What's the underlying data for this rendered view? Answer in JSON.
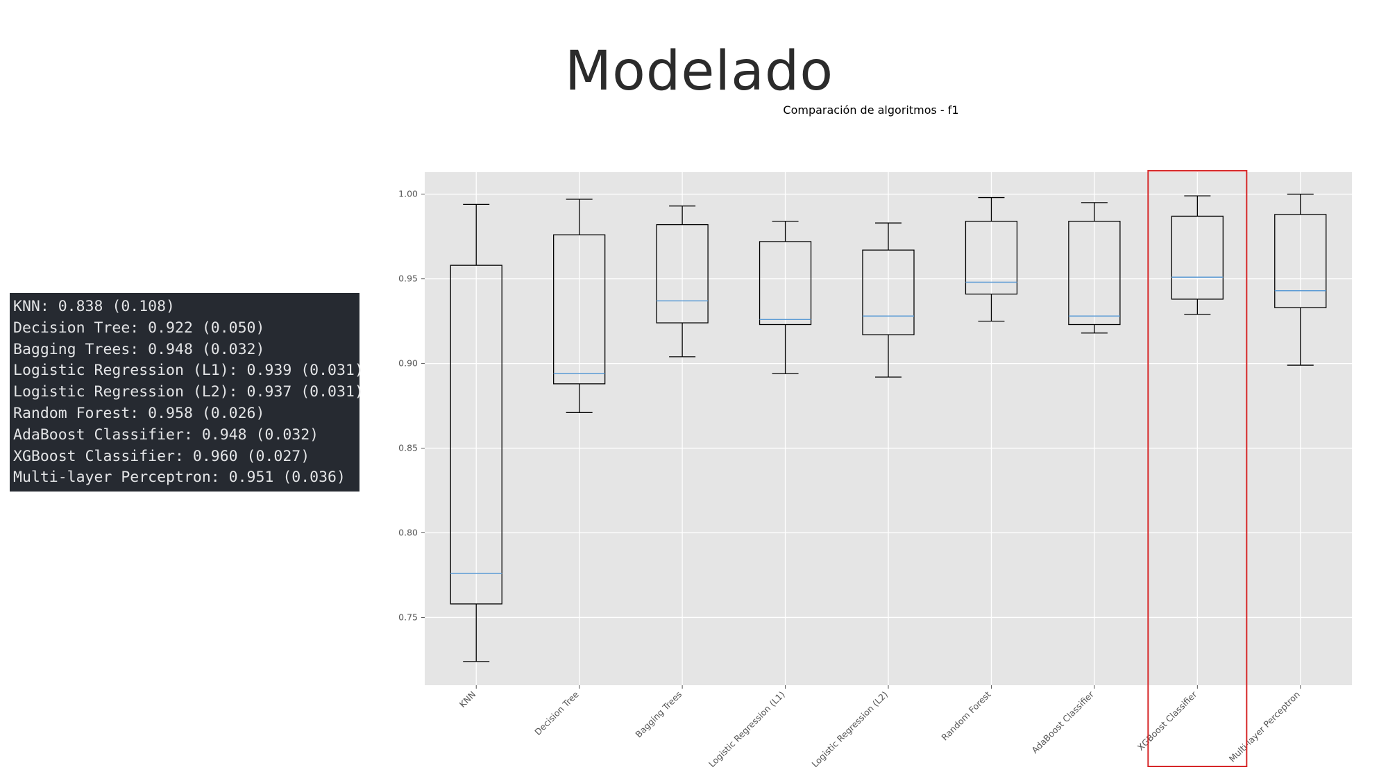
{
  "slide": {
    "title": "Modelado"
  },
  "console": {
    "lines": [
      "KNN: 0.838 (0.108)",
      "Decision Tree: 0.922 (0.050)",
      "Bagging Trees: 0.948 (0.032)",
      "Logistic Regression (L1): 0.939 (0.031)",
      "Logistic Regression (L2): 0.937 (0.031)",
      "Random Forest: 0.958 (0.026)",
      "AdaBoost Classifier: 0.948 (0.032)",
      "XGBoost Classifier: 0.960 (0.027)",
      "Multi-layer Perceptron: 0.951 (0.036)"
    ]
  },
  "chart_data": {
    "type": "box",
    "title": "Comparación de algoritmos - f1",
    "xlabel": "",
    "ylabel": "",
    "ylim": [
      0.71,
      1.013
    ],
    "yticks": [
      0.75,
      0.8,
      0.85,
      0.9,
      0.95,
      1.0
    ],
    "ytick_labels": [
      "0.75",
      "0.80",
      "0.85",
      "0.90",
      "0.95",
      "1.00"
    ],
    "grid": true,
    "highlighted_category": "XGBoost Classifier",
    "colors": {
      "plot_background": "#e5e5e5",
      "grid": "#ffffff",
      "box": "#000000",
      "median": "#5b9bd5",
      "highlight": "#d62728"
    },
    "categories": [
      "KNN",
      "Decision Tree",
      "Bagging Trees",
      "Logistic Regression (L1)",
      "Logistic Regression (L2)",
      "Random Forest",
      "AdaBoost Classifier",
      "XGBoost Classifier",
      "Multi-layer Perceptron"
    ],
    "boxes": [
      {
        "whisker_low": 0.724,
        "q1": 0.758,
        "median": 0.776,
        "q3": 0.958,
        "whisker_high": 0.994
      },
      {
        "whisker_low": 0.871,
        "q1": 0.888,
        "median": 0.894,
        "q3": 0.976,
        "whisker_high": 0.997
      },
      {
        "whisker_low": 0.904,
        "q1": 0.924,
        "median": 0.937,
        "q3": 0.982,
        "whisker_high": 0.993
      },
      {
        "whisker_low": 0.894,
        "q1": 0.923,
        "median": 0.926,
        "q3": 0.972,
        "whisker_high": 0.984
      },
      {
        "whisker_low": 0.892,
        "q1": 0.917,
        "median": 0.928,
        "q3": 0.967,
        "whisker_high": 0.983
      },
      {
        "whisker_low": 0.925,
        "q1": 0.941,
        "median": 0.948,
        "q3": 0.984,
        "whisker_high": 0.998
      },
      {
        "whisker_low": 0.918,
        "q1": 0.923,
        "median": 0.928,
        "q3": 0.984,
        "whisker_high": 0.995
      },
      {
        "whisker_low": 0.929,
        "q1": 0.938,
        "median": 0.951,
        "q3": 0.987,
        "whisker_high": 0.999
      },
      {
        "whisker_low": 0.899,
        "q1": 0.933,
        "median": 0.943,
        "q3": 0.988,
        "whisker_high": 1.0
      }
    ]
  }
}
